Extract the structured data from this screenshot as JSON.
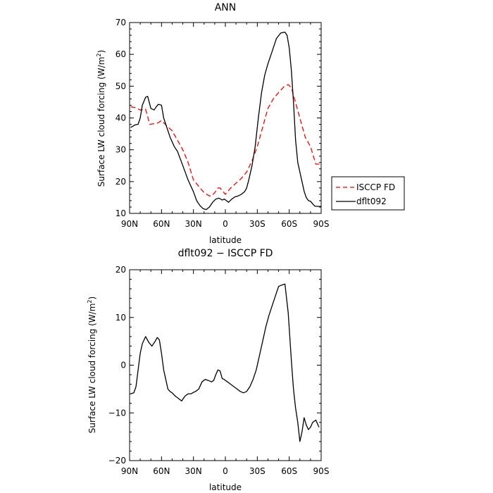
{
  "chart_data": [
    {
      "type": "line",
      "title": "ANN",
      "xlabel": "latitude",
      "ylabel": "Surface LW cloud forcing (W/m",
      "ylabel_sup": "2",
      "ylabel_close": ")",
      "xlim": [
        90,
        -90
      ],
      "ylim": [
        10,
        70
      ],
      "x_ticks": [
        90,
        60,
        30,
        0,
        -30,
        -60,
        -90
      ],
      "x_tick_labels": [
        "90N",
        "60N",
        "30N",
        "0",
        "30S",
        "60S",
        "90S"
      ],
      "y_ticks": [
        10,
        20,
        30,
        40,
        50,
        60,
        70
      ],
      "y_tick_labels": [
        "10",
        "20",
        "30",
        "40",
        "50",
        "60",
        "70"
      ],
      "legend_position": "right",
      "series": [
        {
          "name": "ISCCP FD",
          "color": "#ff0000",
          "dash": "dashed",
          "x": [
            89,
            85,
            80,
            75,
            71,
            67,
            63,
            60,
            55,
            50,
            45,
            40,
            35,
            30,
            25,
            20,
            15,
            13,
            10,
            7,
            5,
            0,
            -5,
            -10,
            -15,
            -20,
            -25,
            -30,
            -35,
            -40,
            -45,
            -50,
            -55,
            -59,
            -62,
            -65,
            -70,
            -75,
            -80,
            -85,
            -89
          ],
          "y": [
            43.5,
            43.3,
            42.5,
            42.8,
            38,
            38.2,
            38.5,
            39.2,
            37.5,
            36,
            33,
            30,
            26,
            20.5,
            18.5,
            16.5,
            15.5,
            15.5,
            16.5,
            18,
            18,
            16,
            18,
            19.5,
            21,
            23,
            26.5,
            31,
            37,
            43,
            46,
            48,
            49.8,
            50.5,
            49.5,
            46,
            40,
            34,
            31,
            25.5,
            25.5
          ]
        },
        {
          "name": "dflt092",
          "color": "#000000",
          "dash": "solid",
          "x": [
            89,
            85,
            82,
            80,
            78,
            75,
            73,
            70,
            67,
            65,
            63,
            60,
            58,
            55,
            52,
            48,
            45,
            40,
            35,
            30,
            27,
            24,
            21,
            18,
            15,
            12,
            9,
            6,
            3,
            1,
            -1,
            -3,
            -6,
            -9,
            -12,
            -15,
            -18,
            -20,
            -22,
            -25,
            -28,
            -31,
            -34,
            -37,
            -40,
            -44,
            -48,
            -52,
            -56,
            -58,
            -60,
            -62,
            -64,
            -66,
            -68,
            -70,
            -72,
            -74,
            -76,
            -78,
            -80,
            -82,
            -84,
            -87,
            -90
          ],
          "y": [
            37,
            37.8,
            38,
            40,
            44,
            46.5,
            46.8,
            43,
            42.5,
            43.5,
            44.3,
            44,
            40,
            37,
            34,
            31,
            29.5,
            25,
            20.5,
            16.8,
            14,
            12.5,
            11.5,
            11.2,
            12,
            13.5,
            14.5,
            14.8,
            14.2,
            14.5,
            14,
            13.5,
            14.5,
            15.2,
            15.5,
            16,
            16.8,
            18,
            20.5,
            25,
            31,
            40,
            48,
            53.5,
            57,
            61,
            65,
            66.7,
            67,
            66,
            62,
            55,
            45,
            33,
            26,
            23,
            20,
            17,
            15,
            14,
            13.8,
            13,
            12.3,
            12.2,
            12.2
          ]
        }
      ]
    },
    {
      "type": "line",
      "title": "dflt092 − ISCCP FD",
      "xlabel": "latitude",
      "ylabel": "Surface LW cloud forcing (W/m",
      "ylabel_sup": "2",
      "ylabel_close": ")",
      "xlim": [
        90,
        -90
      ],
      "ylim": [
        -20,
        20
      ],
      "x_ticks": [
        90,
        60,
        30,
        0,
        -30,
        -60,
        -90
      ],
      "x_tick_labels": [
        "90N",
        "60N",
        "30N",
        "0",
        "30S",
        "60S",
        "90S"
      ],
      "y_ticks": [
        -20,
        -10,
        0,
        10,
        20
      ],
      "y_tick_labels": [
        "−20",
        "−10",
        "0",
        "10",
        "20"
      ],
      "series": [
        {
          "color": "#000000",
          "dash": "solid",
          "x": [
            89,
            86,
            84,
            82,
            80,
            78,
            75,
            72,
            69,
            66,
            64,
            62,
            60,
            58,
            56,
            54,
            52,
            50,
            47,
            44,
            41,
            38,
            35,
            32,
            30,
            28,
            25,
            22,
            19,
            16,
            13,
            11,
            9,
            7,
            5,
            3,
            1,
            0,
            -2,
            -5,
            -8,
            -11,
            -14,
            -17,
            -20,
            -23,
            -26,
            -29,
            -32,
            -35,
            -38,
            -41,
            -44,
            -47,
            -50,
            -53,
            -56,
            -59,
            -62,
            -64,
            -66,
            -68,
            -70,
            -72,
            -74,
            -76,
            -78,
            -80,
            -82,
            -85,
            -88
          ],
          "y": [
            -6,
            -5.8,
            -4.5,
            -1,
            2.5,
            4.5,
            6,
            4.8,
            4,
            5,
            5.8,
            5.3,
            2.5,
            -1,
            -3,
            -5,
            -5.5,
            -5.8,
            -6.5,
            -7,
            -7.5,
            -6.5,
            -6,
            -6,
            -5.7,
            -5.5,
            -5,
            -3.5,
            -3,
            -3.2,
            -3.5,
            -3.2,
            -2,
            -1,
            -1.2,
            -2.8,
            -3,
            -3.2,
            -3.5,
            -4,
            -4.5,
            -5,
            -5.5,
            -5.8,
            -5.5,
            -4.5,
            -3,
            -1,
            2,
            5,
            8,
            10.5,
            12.5,
            14.5,
            16.5,
            16.8,
            17,
            11,
            1,
            -5,
            -9,
            -12,
            -16,
            -14,
            -11,
            -12.5,
            -13.5,
            -13,
            -12,
            -11.5,
            -13
          ]
        }
      ]
    }
  ]
}
